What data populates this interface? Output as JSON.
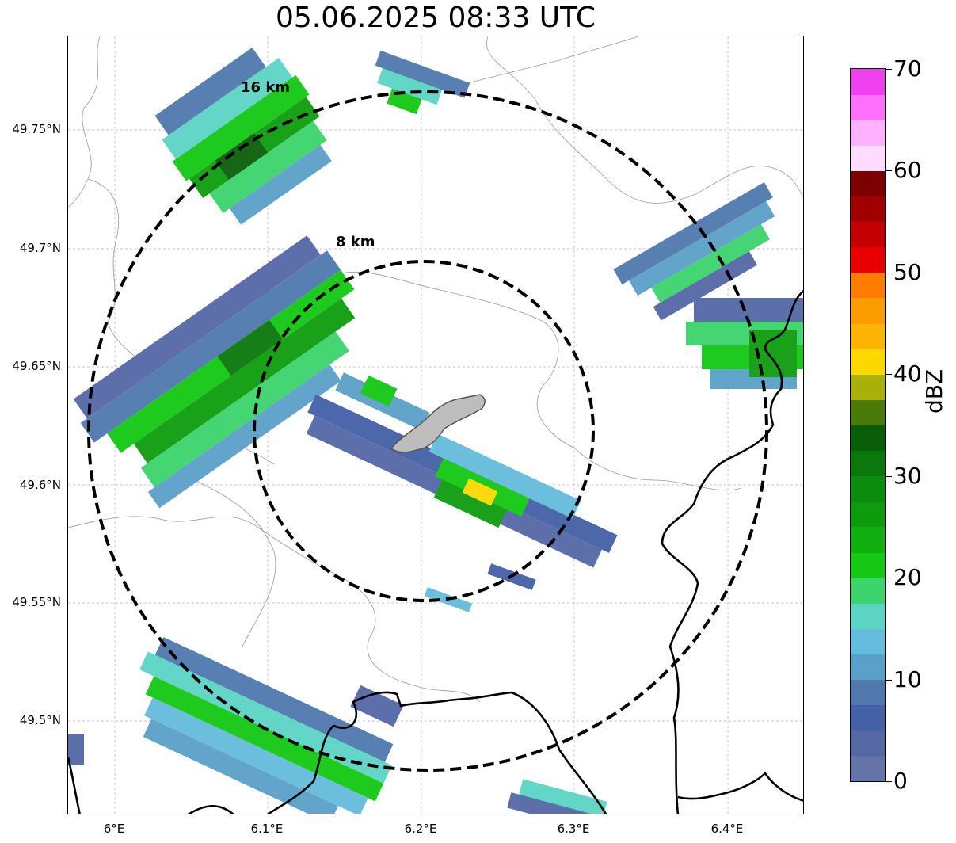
{
  "title": "05.06.2025 08:33 UTC",
  "map": {
    "y_ticks": [
      "49.75°N",
      "49.7°N",
      "49.65°N",
      "49.6°N",
      "49.55°N",
      "49.5°N"
    ],
    "x_ticks": [
      "6°E",
      "6.1°E",
      "6.2°E",
      "6.3°E",
      "6.4°E"
    ],
    "range_rings": [
      {
        "label": "8 km",
        "radius_km": 8
      },
      {
        "label": "16 km",
        "radius_km": 16
      }
    ],
    "grid": true
  },
  "colorbar": {
    "label": "dBZ",
    "ticks": [
      "0",
      "10",
      "20",
      "30",
      "40",
      "50",
      "60",
      "70"
    ],
    "colors": [
      "#6474a8",
      "#5468a6",
      "#4460a6",
      "#4f79ad",
      "#5aa0c8",
      "#64bcdc",
      "#5cd4c4",
      "#3cd46c",
      "#14c814",
      "#10b010",
      "#0e9c0e",
      "#0c8c0c",
      "#0a780a",
      "#0a5e0a",
      "#4a7a0a",
      "#a8b00a",
      "#fcd800",
      "#fcb400",
      "#fc9c00",
      "#fc7c00",
      "#e80000",
      "#c40000",
      "#a00000",
      "#7c0000",
      "#ffdcff",
      "#ffb0ff",
      "#ff70ff",
      "#f040f0"
    ]
  }
}
